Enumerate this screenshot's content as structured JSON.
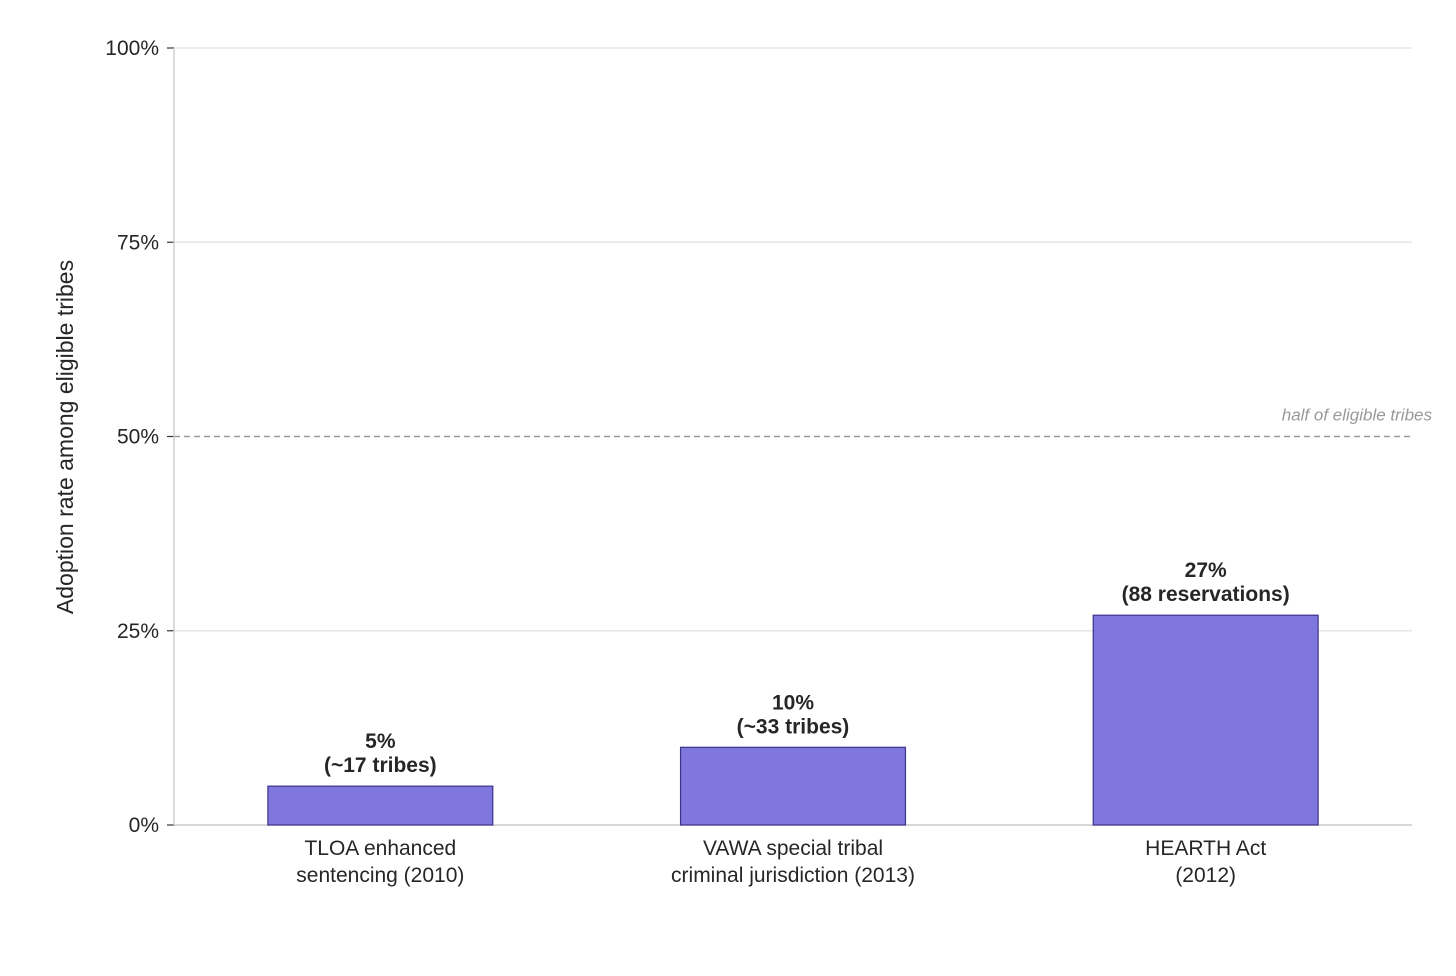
{
  "chart_data": {
    "type": "bar",
    "categories": [
      [
        "TLOA enhanced",
        "sentencing (2010)"
      ],
      [
        "VAWA special tribal",
        "criminal jurisdiction (2013)"
      ],
      [
        "HEARTH Act",
        "(2012)"
      ]
    ],
    "values": [
      5,
      10,
      27
    ],
    "data_labels": [
      [
        "5%",
        "(~17 tribes)"
      ],
      [
        "10%",
        "(~33 tribes)"
      ],
      [
        "27%",
        "(88 reservations)"
      ]
    ],
    "ylabel": "Adoption rate among eligible tribes",
    "xlabel": "",
    "title": "",
    "ylim": [
      0,
      100
    ],
    "yticks": [
      0,
      25,
      50,
      75,
      100
    ],
    "ytick_labels": [
      "0%",
      "25%",
      "50%",
      "75%",
      "100%"
    ],
    "grid": "horizontal",
    "reference_line": {
      "value": 50,
      "label": "half of eligible tribes",
      "style": "dashed"
    },
    "colors": {
      "bar_fill": "#7F77DD",
      "bar_edge": "#3C3489",
      "grid": "#e6e6e6",
      "axis": "#cccccc",
      "reference": "#999999"
    }
  }
}
